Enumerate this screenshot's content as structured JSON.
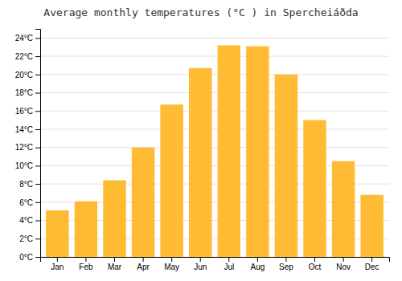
{
  "chart_data": {
    "type": "bar",
    "title": "Average monthly temperatures (°C ) in Spercheiáðda",
    "categories": [
      "Jan",
      "Feb",
      "Mar",
      "Apr",
      "May",
      "Jun",
      "Jul",
      "Aug",
      "Sep",
      "Oct",
      "Nov",
      "Dec"
    ],
    "values": [
      5.1,
      6.1,
      8.4,
      12.0,
      16.7,
      20.7,
      23.2,
      23.1,
      20.0,
      15.0,
      10.5,
      6.8
    ],
    "color": "#FFBB33",
    "ylim": [
      0,
      25
    ],
    "yticks": [
      {
        "value": 0,
        "label": "0°C"
      },
      {
        "value": 2,
        "label": "2°C"
      },
      {
        "value": 4,
        "label": "4°C"
      },
      {
        "value": 6,
        "label": "6°C"
      },
      {
        "value": 8,
        "label": "8°C"
      },
      {
        "value": 10,
        "label": "10°C"
      },
      {
        "value": 12,
        "label": "12°C"
      },
      {
        "value": 14,
        "label": "14°C"
      },
      {
        "value": 16,
        "label": "16°C"
      },
      {
        "value": 18,
        "label": "18°C"
      },
      {
        "value": 20,
        "label": "20°C"
      },
      {
        "value": 22,
        "label": "22°C"
      },
      {
        "value": 24,
        "label": "24°C"
      }
    ],
    "grid": true
  }
}
